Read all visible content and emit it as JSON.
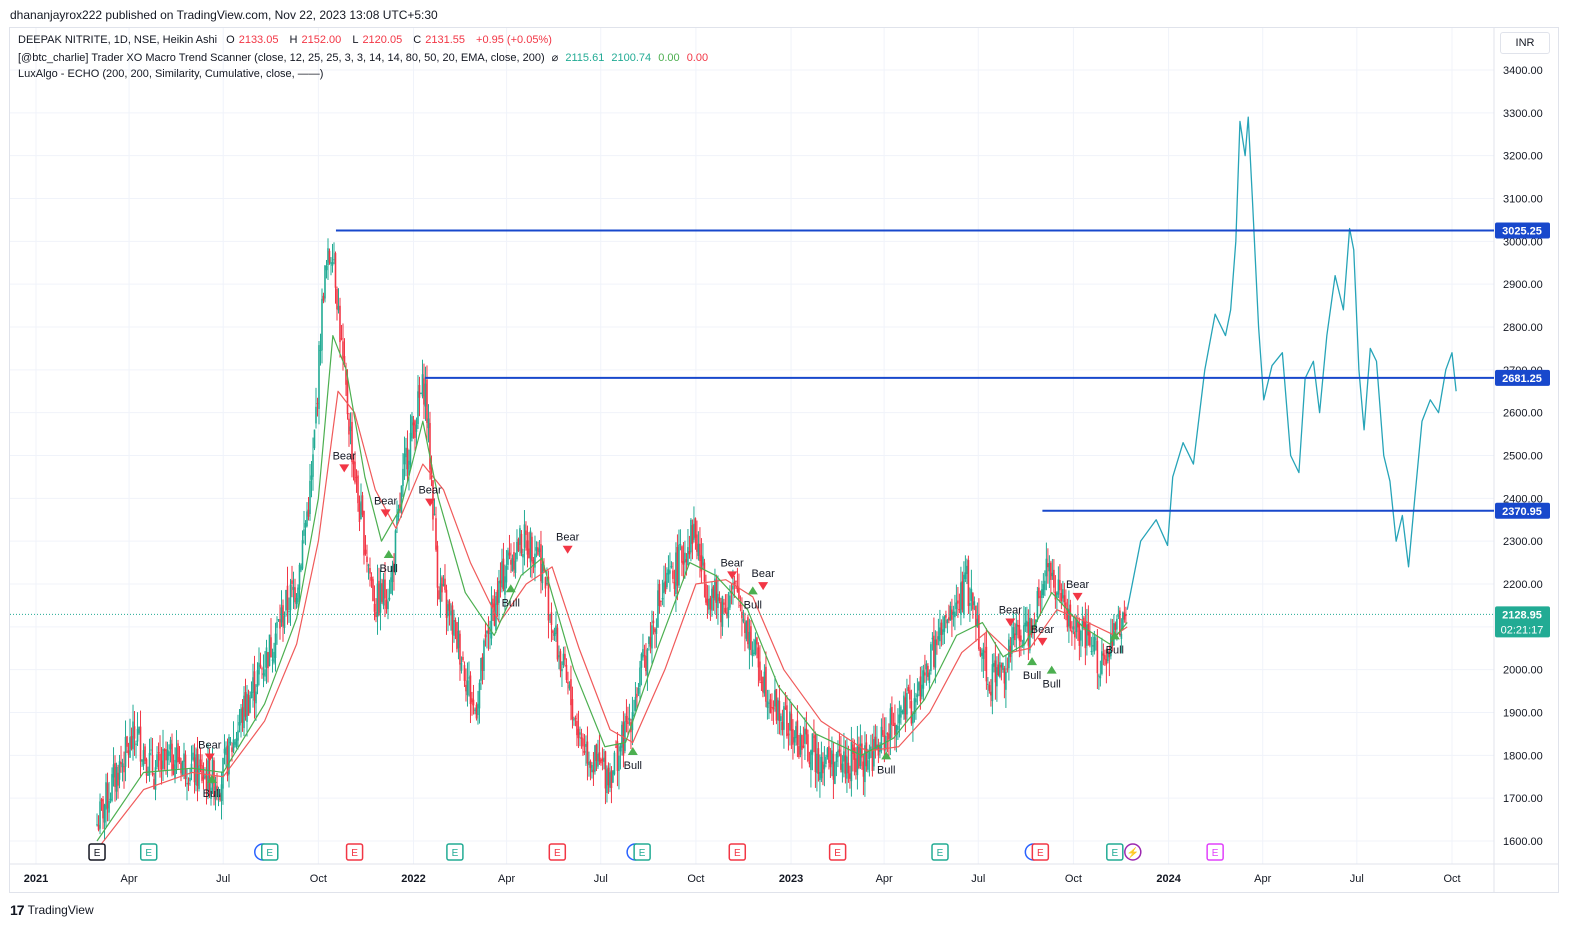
{
  "header": {
    "published_by": "dhananjayrox222 published on TradingView.com, Nov 22, 2023 13:08 UTC+5:30"
  },
  "legend": {
    "symbol_line": "DEEPAK NITRITE, 1D, NSE, Heikin Ashi",
    "ohlc": {
      "o_label": "O",
      "o": "2133.05",
      "h_label": "H",
      "h": "2152.00",
      "l_label": "L",
      "l": "2120.05",
      "c_label": "C",
      "c": "2131.55",
      "change": "+0.95 (+0.05%)"
    },
    "indicator1": "[@btc_charlie] Trader XO Macro Trend Scanner (close, 12, 25, 25, 3, 3, 14, 14, 80, 50, 20, EMA, close, 200)",
    "indicator1_icon": "⌀",
    "indicator1_values": [
      "2115.61",
      "2100.74",
      "0.00",
      "0.00"
    ],
    "indicator2": "LuxAlgo - ECHO (200, 200, Similarity, Cumulative, close, ——)"
  },
  "currency_button": "INR",
  "footer": {
    "logo": "17",
    "brand": "TradingView"
  },
  "colors": {
    "up": "#22ab94",
    "down": "#f23645",
    "ema_fast": "#4caf50",
    "ema_slow": "#f05a5a",
    "echo": "#26a4b8",
    "level": "#1848cc",
    "price_tag": "#22ab94",
    "grid": "#f0f3fa"
  },
  "chart_data": {
    "type": "candlestick",
    "title": "DEEPAK NITRITE, 1D, NSE, Heikin Ashi",
    "ylim": [
      1550,
      3480
    ],
    "y_ticks": [
      1600,
      1700,
      1800,
      1900,
      2000,
      2100,
      2200,
      2300,
      2400,
      2500,
      2600,
      2700,
      2800,
      2900,
      3000,
      3100,
      3200,
      3300,
      3400
    ],
    "x_ticks": [
      {
        "label": "2021",
        "date": "2021-01-01",
        "bold": true
      },
      {
        "label": "Apr",
        "date": "2021-04-01"
      },
      {
        "label": "Jul",
        "date": "2021-07-01"
      },
      {
        "label": "Oct",
        "date": "2021-10-01"
      },
      {
        "label": "2022",
        "date": "2022-01-01",
        "bold": true
      },
      {
        "label": "Apr",
        "date": "2022-04-01"
      },
      {
        "label": "Jul",
        "date": "2022-07-01"
      },
      {
        "label": "Oct",
        "date": "2022-10-01"
      },
      {
        "label": "2023",
        "date": "2023-01-01",
        "bold": true
      },
      {
        "label": "Apr",
        "date": "2023-04-01"
      },
      {
        "label": "Jul",
        "date": "2023-07-01"
      },
      {
        "label": "Oct",
        "date": "2023-10-01"
      },
      {
        "label": "2024",
        "date": "2024-01-01",
        "bold": true
      },
      {
        "label": "Apr",
        "date": "2024-04-01"
      },
      {
        "label": "Jul",
        "date": "2024-07-01"
      },
      {
        "label": "Oct",
        "date": "2024-10-01"
      }
    ],
    "price_trend": [
      [
        "2021-03-01",
        1640
      ],
      [
        "2021-03-20",
        1760
      ],
      [
        "2021-04-08",
        1850
      ],
      [
        "2021-04-25",
        1760
      ],
      [
        "2021-05-15",
        1800
      ],
      [
        "2021-06-05",
        1760
      ],
      [
        "2021-06-28",
        1740
      ],
      [
        "2021-07-20",
        1900
      ],
      [
        "2021-08-15",
        2050
      ],
      [
        "2021-08-31",
        2150
      ],
      [
        "2021-09-10",
        2200
      ],
      [
        "2021-09-25",
        2450
      ],
      [
        "2021-10-06",
        2900
      ],
      [
        "2021-10-15",
        3000
      ],
      [
        "2021-10-25",
        2700
      ],
      [
        "2021-11-08",
        2400
      ],
      [
        "2021-11-25",
        2150
      ],
      [
        "2021-12-10",
        2200
      ],
      [
        "2021-12-25",
        2500
      ],
      [
        "2022-01-06",
        2620
      ],
      [
        "2022-01-12",
        2670
      ],
      [
        "2022-01-25",
        2200
      ],
      [
        "2022-02-15",
        2050
      ],
      [
        "2022-03-01",
        1900
      ],
      [
        "2022-03-15",
        2100
      ],
      [
        "2022-04-01",
        2250
      ],
      [
        "2022-04-15",
        2300
      ],
      [
        "2022-05-01",
        2290
      ],
      [
        "2022-05-20",
        2050
      ],
      [
        "2022-06-10",
        1850
      ],
      [
        "2022-06-25",
        1780
      ],
      [
        "2022-07-10",
        1760
      ],
      [
        "2022-07-25",
        1850
      ],
      [
        "2022-08-10",
        2000
      ],
      [
        "2022-08-25",
        2150
      ],
      [
        "2022-09-15",
        2250
      ],
      [
        "2022-09-29",
        2330
      ],
      [
        "2022-10-10",
        2200
      ],
      [
        "2022-10-25",
        2150
      ],
      [
        "2022-11-10",
        2180
      ],
      [
        "2022-11-25",
        2050
      ],
      [
        "2022-12-15",
        1920
      ],
      [
        "2023-01-05",
        1840
      ],
      [
        "2023-01-25",
        1800
      ],
      [
        "2023-02-15",
        1780
      ],
      [
        "2023-03-10",
        1790
      ],
      [
        "2023-03-25",
        1810
      ],
      [
        "2023-04-10",
        1880
      ],
      [
        "2023-05-01",
        1920
      ],
      [
        "2023-05-20",
        2050
      ],
      [
        "2023-06-05",
        2120
      ],
      [
        "2023-06-20",
        2200
      ],
      [
        "2023-07-01",
        2100
      ],
      [
        "2023-07-10",
        1980
      ],
      [
        "2023-07-25",
        2000
      ],
      [
        "2023-08-05",
        2070
      ],
      [
        "2023-08-20",
        2100
      ],
      [
        "2023-09-05",
        2250
      ],
      [
        "2023-09-20",
        2150
      ],
      [
        "2023-10-05",
        2080
      ],
      [
        "2023-10-20",
        2050
      ],
      [
        "2023-11-01",
        2000
      ],
      [
        "2023-11-12",
        2100
      ],
      [
        "2023-11-22",
        2131
      ]
    ],
    "ema_fast": [
      [
        "2021-03-01",
        1600
      ],
      [
        "2021-04-15",
        1760
      ],
      [
        "2021-06-01",
        1770
      ],
      [
        "2021-07-01",
        1760
      ],
      [
        "2021-08-10",
        1920
      ],
      [
        "2021-09-10",
        2120
      ],
      [
        "2021-10-01",
        2400
      ],
      [
        "2021-10-15",
        2780
      ],
      [
        "2021-10-28",
        2700
      ],
      [
        "2021-11-15",
        2450
      ],
      [
        "2021-12-01",
        2300
      ],
      [
        "2021-12-20",
        2380
      ],
      [
        "2022-01-10",
        2580
      ],
      [
        "2022-01-25",
        2400
      ],
      [
        "2022-02-20",
        2180
      ],
      [
        "2022-03-20",
        2080
      ],
      [
        "2022-04-15",
        2220
      ],
      [
        "2022-05-05",
        2260
      ],
      [
        "2022-06-05",
        2000
      ],
      [
        "2022-07-05",
        1820
      ],
      [
        "2022-07-25",
        1830
      ],
      [
        "2022-08-25",
        2050
      ],
      [
        "2022-09-25",
        2250
      ],
      [
        "2022-10-20",
        2220
      ],
      [
        "2022-11-20",
        2140
      ],
      [
        "2022-12-20",
        1960
      ],
      [
        "2023-01-25",
        1850
      ],
      [
        "2023-03-10",
        1800
      ],
      [
        "2023-04-10",
        1840
      ],
      [
        "2023-05-10",
        1930
      ],
      [
        "2023-06-10",
        2080
      ],
      [
        "2023-07-05",
        2110
      ],
      [
        "2023-07-25",
        2030
      ],
      [
        "2023-08-15",
        2060
      ],
      [
        "2023-09-10",
        2180
      ],
      [
        "2023-10-10",
        2100
      ],
      [
        "2023-11-05",
        2060
      ],
      [
        "2023-11-22",
        2110
      ]
    ],
    "ema_slow": [
      [
        "2021-03-01",
        1580
      ],
      [
        "2021-04-15",
        1720
      ],
      [
        "2021-06-01",
        1760
      ],
      [
        "2021-07-01",
        1750
      ],
      [
        "2021-08-10",
        1880
      ],
      [
        "2021-09-10",
        2060
      ],
      [
        "2021-10-01",
        2300
      ],
      [
        "2021-10-20",
        2650
      ],
      [
        "2021-11-05",
        2600
      ],
      [
        "2021-11-25",
        2420
      ],
      [
        "2021-12-15",
        2330
      ],
      [
        "2022-01-10",
        2480
      ],
      [
        "2022-01-30",
        2420
      ],
      [
        "2022-02-25",
        2250
      ],
      [
        "2022-03-25",
        2110
      ],
      [
        "2022-04-20",
        2200
      ],
      [
        "2022-05-15",
        2240
      ],
      [
        "2022-06-10",
        2050
      ],
      [
        "2022-07-10",
        1860
      ],
      [
        "2022-08-01",
        1830
      ],
      [
        "2022-09-01",
        2000
      ],
      [
        "2022-10-01",
        2200
      ],
      [
        "2022-10-30",
        2210
      ],
      [
        "2022-11-25",
        2170
      ],
      [
        "2022-12-25",
        2000
      ],
      [
        "2023-01-30",
        1880
      ],
      [
        "2023-03-15",
        1810
      ],
      [
        "2023-04-15",
        1820
      ],
      [
        "2023-05-15",
        1900
      ],
      [
        "2023-06-15",
        2040
      ],
      [
        "2023-07-10",
        2090
      ],
      [
        "2023-08-01",
        2040
      ],
      [
        "2023-08-20",
        2050
      ],
      [
        "2023-09-15",
        2140
      ],
      [
        "2023-10-15",
        2110
      ],
      [
        "2023-11-10",
        2080
      ],
      [
        "2023-11-22",
        2100
      ]
    ],
    "echo_projection": [
      [
        "2023-11-22",
        2140
      ],
      [
        "2023-12-05",
        2300
      ],
      [
        "2023-12-20",
        2350
      ],
      [
        "2023-12-31",
        2290
      ],
      [
        "2024-01-05",
        2450
      ],
      [
        "2024-01-15",
        2530
      ],
      [
        "2024-01-25",
        2480
      ],
      [
        "2024-02-05",
        2700
      ],
      [
        "2024-02-15",
        2830
      ],
      [
        "2024-02-25",
        2780
      ],
      [
        "2024-03-01",
        2840
      ],
      [
        "2024-03-06",
        3000
      ],
      [
        "2024-03-10",
        3280
      ],
      [
        "2024-03-15",
        3200
      ],
      [
        "2024-03-18",
        3290
      ],
      [
        "2024-03-22",
        3100
      ],
      [
        "2024-03-28",
        2800
      ],
      [
        "2024-04-02",
        2630
      ],
      [
        "2024-04-10",
        2710
      ],
      [
        "2024-04-20",
        2740
      ],
      [
        "2024-04-28",
        2500
      ],
      [
        "2024-05-06",
        2460
      ],
      [
        "2024-05-12",
        2680
      ],
      [
        "2024-05-20",
        2720
      ],
      [
        "2024-05-26",
        2600
      ],
      [
        "2024-06-02",
        2780
      ],
      [
        "2024-06-10",
        2920
      ],
      [
        "2024-06-18",
        2840
      ],
      [
        "2024-06-24",
        3030
      ],
      [
        "2024-06-28",
        2980
      ],
      [
        "2024-07-03",
        2700
      ],
      [
        "2024-07-08",
        2560
      ],
      [
        "2024-07-14",
        2750
      ],
      [
        "2024-07-20",
        2720
      ],
      [
        "2024-07-27",
        2500
      ],
      [
        "2024-08-02",
        2440
      ],
      [
        "2024-08-08",
        2300
      ],
      [
        "2024-08-14",
        2360
      ],
      [
        "2024-08-20",
        2240
      ],
      [
        "2024-08-26",
        2400
      ],
      [
        "2024-09-02",
        2580
      ],
      [
        "2024-09-10",
        2630
      ],
      [
        "2024-09-18",
        2600
      ],
      [
        "2024-09-25",
        2700
      ],
      [
        "2024-10-01",
        2740
      ],
      [
        "2024-10-05",
        2650
      ]
    ],
    "levels": [
      {
        "label": "3025.25",
        "value": 3025.25,
        "from": "2021-10-18"
      },
      {
        "label": "2681.25",
        "value": 2681.25,
        "from": "2022-01-12"
      },
      {
        "label": "2370.95",
        "value": 2370.95,
        "from": "2023-09-01"
      }
    ],
    "last_price": {
      "label": "2128.95",
      "value": 2128.95,
      "countdown": "02:21:17"
    },
    "signals": [
      {
        "type": "Bear",
        "date": "2021-10-26",
        "price": 2470
      },
      {
        "type": "Bear",
        "date": "2021-12-05",
        "price": 2365
      },
      {
        "type": "Bull",
        "date": "2021-12-08",
        "price": 2270
      },
      {
        "type": "Bear",
        "date": "2022-01-17",
        "price": 2390
      },
      {
        "type": "Bull",
        "date": "2022-04-05",
        "price": 2190
      },
      {
        "type": "Bear",
        "date": "2022-05-30",
        "price": 2280
      },
      {
        "type": "Bear",
        "date": "2021-06-18",
        "price": 1795
      },
      {
        "type": "Bull",
        "date": "2021-06-20",
        "price": 1745
      },
      {
        "type": "Bull",
        "date": "2022-08-01",
        "price": 1810
      },
      {
        "type": "Bear",
        "date": "2022-11-05",
        "price": 2220
      },
      {
        "type": "Bull",
        "date": "2022-11-25",
        "price": 2185
      },
      {
        "type": "Bear",
        "date": "2022-12-05",
        "price": 2195
      },
      {
        "type": "Bull",
        "date": "2023-04-03",
        "price": 1800
      },
      {
        "type": "Bear",
        "date": "2023-08-01",
        "price": 2110
      },
      {
        "type": "Bear",
        "date": "2023-09-01",
        "price": 2065
      },
      {
        "type": "Bull",
        "date": "2023-08-22",
        "price": 2020
      },
      {
        "type": "Bull",
        "date": "2023-09-10",
        "price": 2000
      },
      {
        "type": "Bear",
        "date": "2023-10-05",
        "price": 2170
      },
      {
        "type": "Bull",
        "date": "2023-11-10",
        "price": 2080
      }
    ],
    "events": [
      {
        "date": "2021-03-01",
        "label": "E",
        "color": "#131722"
      },
      {
        "date": "2021-04-20",
        "label": "E",
        "color": "#22ab94"
      },
      {
        "date": "2021-08-15",
        "label": "E",
        "color": "#22ab94",
        "extra": "#2962ff"
      },
      {
        "date": "2021-11-05",
        "label": "E",
        "color": "#f23645"
      },
      {
        "date": "2022-02-10",
        "label": "E",
        "color": "#22ab94"
      },
      {
        "date": "2022-05-20",
        "label": "E",
        "color": "#f23645"
      },
      {
        "date": "2022-08-10",
        "label": "E",
        "color": "#22ab94",
        "extra": "#2962ff"
      },
      {
        "date": "2022-11-10",
        "label": "E",
        "color": "#f23645"
      },
      {
        "date": "2023-02-15",
        "label": "E",
        "color": "#f23645"
      },
      {
        "date": "2023-05-25",
        "label": "E",
        "color": "#22ab94"
      },
      {
        "date": "2023-08-30",
        "label": "E",
        "color": "#f23645",
        "extra": "#2962ff"
      },
      {
        "date": "2023-11-10",
        "label": "E",
        "color": "#22ab94",
        "dividend": "#9c27b0"
      },
      {
        "date": "2024-02-15",
        "label": "E",
        "color": "#e040fb"
      }
    ]
  }
}
